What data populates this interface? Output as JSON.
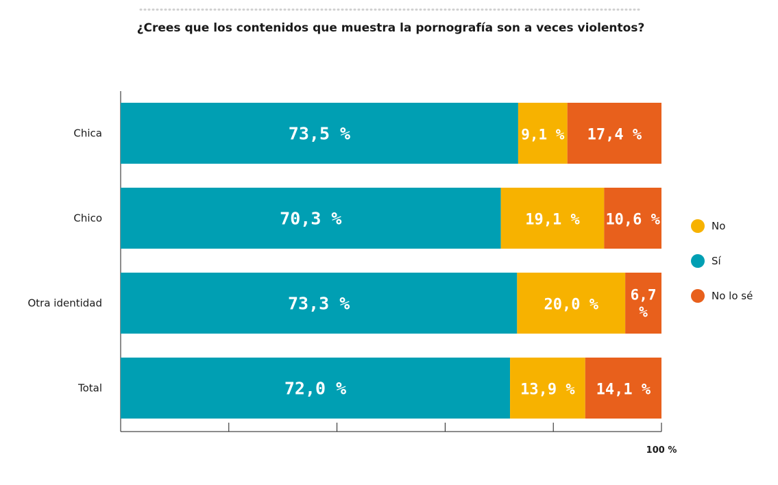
{
  "chart_data": {
    "type": "bar",
    "orientation": "horizontal",
    "stacked": true,
    "title": "¿Crees que los contenidos que muestra la pornografía son a veces violentos?",
    "categories": [
      "Chica",
      "Chico",
      "Otra identidad",
      "Total"
    ],
    "series": [
      {
        "name": "Sí",
        "color": "#009fb3",
        "values": [
          73.5,
          70.3,
          73.3,
          72.0
        ],
        "labels": [
          "73,5 %",
          "70,3 %",
          "73,3 %",
          "72,0 %"
        ]
      },
      {
        "name": "No",
        "color": "#f7b200",
        "values": [
          9.1,
          19.1,
          20.0,
          13.9
        ],
        "labels": [
          "9,1 %",
          "19,1 %",
          "20,0 %",
          "13,9 %"
        ]
      },
      {
        "name": "No lo sé",
        "color": "#e8601c",
        "values": [
          17.4,
          10.6,
          6.7,
          14.1
        ],
        "labels": [
          "17,4 %",
          "10,6 %",
          "6,7 %",
          "14,1 %"
        ]
      }
    ],
    "legend_order": [
      "No",
      "Sí",
      "No lo sé"
    ],
    "legend_position": "right",
    "xlim": [
      0,
      100
    ],
    "x_tick_label": "100 %"
  }
}
